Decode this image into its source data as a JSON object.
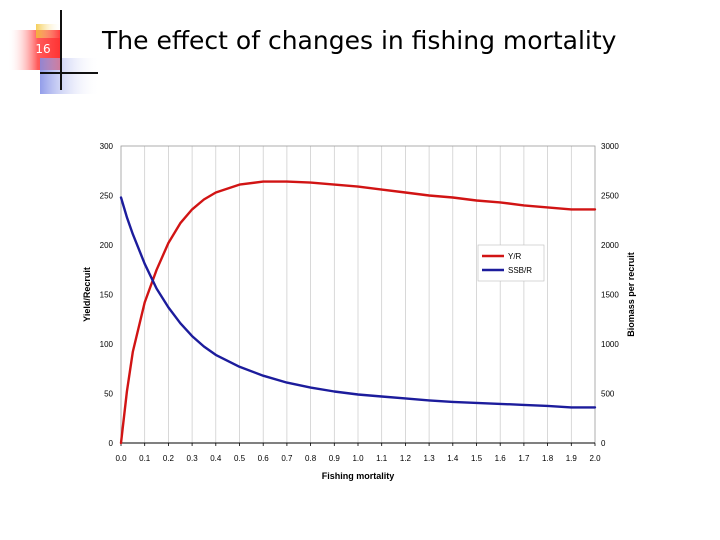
{
  "slide": {
    "number": "16",
    "title": "The effect of changes in fishing mortality"
  },
  "colors": {
    "yr": "#d11414",
    "ssbr": "#1c1c9c",
    "grid": "#c8c8c8",
    "accent_red": "#ff3b3b",
    "accent_yellow": "#f2c230",
    "accent_blue": "#9aa4ea"
  },
  "chart_data": {
    "type": "line",
    "title": "",
    "xlabel": "Fishing mortality",
    "ylabel": "Yield/Recruit",
    "y2label": "Biomass per recruit",
    "xlim": [
      0.0,
      2.0
    ],
    "ylim": [
      0,
      300
    ],
    "y2lim": [
      0,
      3000
    ],
    "x_ticks": [
      "0.0",
      "0.1",
      "0.2",
      "0.3",
      "0.4",
      "0.5",
      "0.6",
      "0.7",
      "0.8",
      "0.9",
      "1.0",
      "1.1",
      "1.2",
      "1.3",
      "1.4",
      "1.5",
      "1.6",
      "1.7",
      "1.8",
      "1.9",
      "2.0"
    ],
    "y_ticks": [
      "0",
      "50",
      "100",
      "150",
      "200",
      "250",
      "300"
    ],
    "y2_ticks": [
      "0",
      "500",
      "1000",
      "1500",
      "2000",
      "2500",
      "3000"
    ],
    "grid": "vertical",
    "legend_position": "right-middle",
    "x": [
      0.0,
      0.025,
      0.05,
      0.1,
      0.15,
      0.2,
      0.25,
      0.3,
      0.35,
      0.4,
      0.5,
      0.6,
      0.7,
      0.8,
      0.9,
      1.0,
      1.1,
      1.2,
      1.3,
      1.4,
      1.5,
      1.6,
      1.7,
      1.8,
      1.9,
      2.0
    ],
    "series": [
      {
        "name": "Y/R",
        "axis": "left",
        "color_key": "yr",
        "values": [
          0,
          52,
          92,
          142,
          175,
          202,
          222,
          236,
          246,
          253,
          261,
          264,
          264,
          263,
          261,
          259,
          256,
          253,
          250,
          248,
          245,
          243,
          240,
          238,
          236,
          236
        ]
      },
      {
        "name": "SSB/R",
        "axis": "right",
        "color_key": "ssbr",
        "values": [
          2480,
          2280,
          2110,
          1810,
          1560,
          1370,
          1210,
          1080,
          975,
          890,
          770,
          680,
          610,
          560,
          520,
          490,
          470,
          450,
          430,
          415,
          405,
          395,
          385,
          375,
          360,
          360
        ]
      }
    ]
  }
}
